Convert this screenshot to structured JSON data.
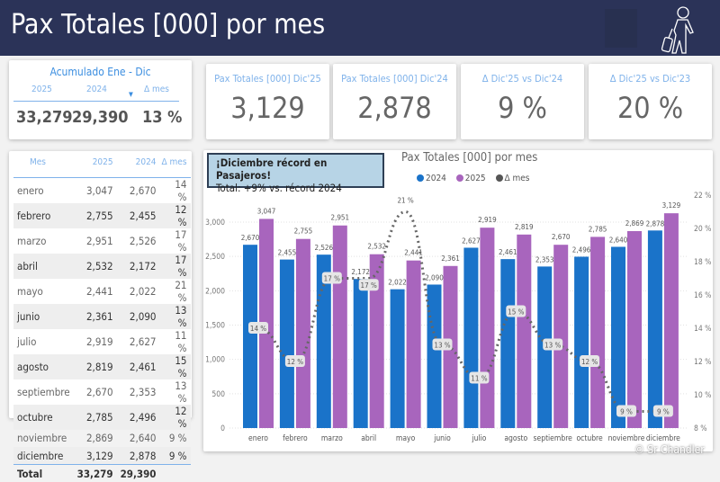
{
  "header": {
    "title": "Pax Totales [000] por mes",
    "icon": "traveler-with-suitcase-icon"
  },
  "accumulated": {
    "title": "Acumulado Ene - Dic",
    "headers": [
      "2025",
      "2024",
      "Δ mes"
    ],
    "values": [
      "33,279",
      "29,390",
      "13 %"
    ]
  },
  "kpis": [
    {
      "label": "Pax Totales [000] Dic'25",
      "value": "3,129"
    },
    {
      "label": "Pax Totales [000] Dic'24",
      "value": "2,878"
    },
    {
      "label": "Δ Dic'25 vs Dic'24",
      "value": "9 %"
    },
    {
      "label": "Δ Dic'25 vs Dic'23",
      "value": "20 %"
    }
  ],
  "table": {
    "headers": [
      "Mes",
      "2025",
      "2024",
      "Δ mes"
    ],
    "rows": [
      [
        "enero",
        "3,047",
        "2,670",
        "14 %"
      ],
      [
        "febrero",
        "2,755",
        "2,455",
        "12 %"
      ],
      [
        "marzo",
        "2,951",
        "2,526",
        "17 %"
      ],
      [
        "abril",
        "2,532",
        "2,172",
        "17 %"
      ],
      [
        "mayo",
        "2,441",
        "2,022",
        "21 %"
      ],
      [
        "junio",
        "2,361",
        "2,090",
        "13 %"
      ],
      [
        "julio",
        "2,919",
        "2,627",
        "11 %"
      ],
      [
        "agosto",
        "2,819",
        "2,461",
        "15 %"
      ],
      [
        "septiembre",
        "2,670",
        "2,353",
        "13 %"
      ],
      [
        "octubre",
        "2,785",
        "2,496",
        "12 %"
      ],
      [
        "noviembre",
        "2,869",
        "2,640",
        "9 %"
      ],
      [
        "diciembre",
        "3,129",
        "2,878",
        "9 %"
      ]
    ],
    "total": [
      "Total",
      "33,279",
      "29,390",
      ""
    ]
  },
  "note": {
    "line1": "¡Diciembre récord en Pasajeros!",
    "line2": "Total: +9% vs. récord 2024"
  },
  "watermark": "© Sr Chandler",
  "chart_data": {
    "type": "bar",
    "title": "Pax Totales [000] por mes",
    "categories": [
      "enero",
      "febrero",
      "marzo",
      "abril",
      "mayo",
      "junio",
      "julio",
      "agosto",
      "septiembre",
      "octubre",
      "noviembre",
      "diciembre"
    ],
    "series": [
      {
        "name": "2024",
        "type": "bar",
        "color": "#1a73c9",
        "values": [
          2670,
          2455,
          2526,
          2172,
          2022,
          2090,
          2627,
          2461,
          2353,
          2496,
          2640,
          2878
        ]
      },
      {
        "name": "2025",
        "type": "bar",
        "color": "#a865bd",
        "values": [
          3047,
          2755,
          2951,
          2532,
          2441,
          2361,
          2919,
          2819,
          2670,
          2785,
          2869,
          3129
        ]
      },
      {
        "name": "Δ mes",
        "type": "line",
        "axis": "right",
        "color": "#555555",
        "values": [
          14,
          12,
          17,
          17,
          21,
          13,
          11,
          15,
          13,
          12,
          9,
          9
        ]
      }
    ],
    "ylim": [
      0,
      3000
    ],
    "yticks": [
      "0",
      "500",
      "1,000",
      "1,500",
      "2,000",
      "2,500",
      "3,000"
    ],
    "y2lim": [
      8,
      22
    ],
    "y2ticks": [
      "8 %",
      "10 %",
      "12 %",
      "14 %",
      "16 %",
      "18 %",
      "20 %",
      "22 %"
    ],
    "legend": "top",
    "grid": true
  }
}
